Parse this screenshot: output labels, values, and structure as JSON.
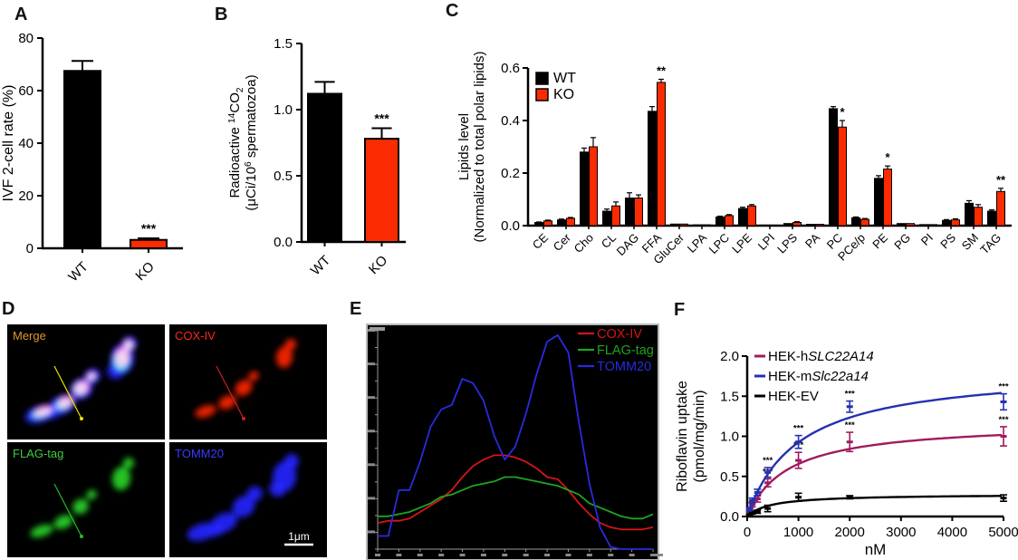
{
  "figure": {
    "panels": {
      "A": {
        "label": "A"
      },
      "B": {
        "label": "B"
      },
      "C": {
        "label": "C"
      },
      "D": {
        "label": "D"
      },
      "E": {
        "label": "E"
      },
      "F": {
        "label": "F"
      }
    }
  },
  "colors": {
    "wt": "#000000",
    "ko": "#fa2b00",
    "human": "#a01b5e",
    "mouse": "#2531b0",
    "ev": "#000000",
    "e_red": "#d51515",
    "e_green": "#1fa51f",
    "e_blue": "#2a2ae0"
  },
  "chart_data": [
    {
      "id": "A",
      "type": "bar",
      "ylabel": "IVF 2-cell rate (%)",
      "categories": [
        "WT",
        "KO"
      ],
      "values": [
        67.5,
        3.2
      ],
      "errors": [
        3.8,
        0.6
      ],
      "bar_colors": [
        "#000000",
        "#fa2b00"
      ],
      "ylim": [
        0,
        80
      ],
      "yticks": [
        0,
        20,
        40,
        60,
        80
      ],
      "ytick_labels": [
        "0",
        "20",
        "40",
        "60",
        "80"
      ],
      "significance": [
        {
          "category": "KO",
          "text": "***"
        }
      ]
    },
    {
      "id": "B",
      "type": "bar",
      "ylabel_rich": [
        [
          {
            "t": "Radioactive "
          },
          {
            "t": "14",
            "sup": true
          },
          {
            "t": "CO"
          },
          {
            "t": "2",
            "sub": true
          }
        ],
        [
          {
            "t": "(μCi/10"
          },
          {
            "t": "6",
            "sup": true
          },
          {
            "t": " spermatozoa)"
          }
        ]
      ],
      "categories": [
        "WT",
        "KO"
      ],
      "values": [
        1.12,
        0.78
      ],
      "errors": [
        0.09,
        0.08
      ],
      "bar_colors": [
        "#000000",
        "#fa2b00"
      ],
      "ylim": [
        0,
        1.5
      ],
      "yticks": [
        0,
        0.5,
        1.0,
        1.5
      ],
      "ytick_labels": [
        "0.0",
        "0.5",
        "1.0",
        "1.5"
      ],
      "significance": [
        {
          "category": "KO",
          "text": "***"
        }
      ]
    },
    {
      "id": "C",
      "type": "grouped_bar",
      "ylabel_lines": [
        "Lipids level",
        "(Normalized to total polar lipids)"
      ],
      "categories": [
        "CE",
        "Cer",
        "Cho",
        "CL",
        "DAG",
        "FFA",
        "GluCer",
        "LPA",
        "LPC",
        "LPE",
        "LPI",
        "LPS",
        "PA",
        "PC",
        "PCe/p",
        "PE",
        "PG",
        "PI",
        "PS",
        "SM",
        "TAG"
      ],
      "legend": [
        "WT",
        "KO"
      ],
      "series": [
        {
          "name": "WT",
          "color": "#000000",
          "values": [
            0.012,
            0.022,
            0.28,
            0.055,
            0.105,
            0.435,
            0.006,
            0.003,
            0.033,
            0.065,
            0.002,
            0.008,
            0.005,
            0.445,
            0.03,
            0.18,
            0.008,
            0.004,
            0.02,
            0.085,
            0.055
          ],
          "errors": [
            0.002,
            0.003,
            0.015,
            0.008,
            0.02,
            0.018,
            0.001,
            0.001,
            0.003,
            0.005,
            0.001,
            0.002,
            0.001,
            0.008,
            0.003,
            0.01,
            0.002,
            0.001,
            0.003,
            0.01,
            0.005
          ]
        },
        {
          "name": "KO",
          "color": "#fa2b00",
          "values": [
            0.018,
            0.028,
            0.3,
            0.075,
            0.105,
            0.545,
            0.006,
            0.003,
            0.038,
            0.075,
            0.002,
            0.012,
            0.005,
            0.375,
            0.024,
            0.215,
            0.008,
            0.004,
            0.022,
            0.07,
            0.13
          ],
          "errors": [
            0.003,
            0.003,
            0.035,
            0.015,
            0.012,
            0.012,
            0.001,
            0.001,
            0.004,
            0.005,
            0.001,
            0.003,
            0.001,
            0.025,
            0.003,
            0.012,
            0.002,
            0.001,
            0.004,
            0.01,
            0.012
          ]
        }
      ],
      "ylim": [
        0,
        0.6
      ],
      "yticks": [
        0,
        0.2,
        0.4,
        0.6
      ],
      "ytick_labels": [
        "0.0",
        "0.2",
        "0.4",
        "0.6"
      ],
      "significance": [
        {
          "category": "FFA",
          "text": "**"
        },
        {
          "category": "PC",
          "text": "*"
        },
        {
          "category": "PE",
          "text": "*"
        },
        {
          "category": "TAG",
          "text": "**"
        }
      ]
    },
    {
      "id": "E",
      "type": "line",
      "background": "#000000",
      "legend": [
        {
          "label": "COX-IV",
          "color": "#d51515"
        },
        {
          "label": "FLAG-tag",
          "color": "#1fa51f"
        },
        {
          "label": "TOMM20",
          "color": "#2a2ae0"
        }
      ],
      "x_range": [
        0,
        130
      ],
      "x": [
        0,
        5,
        10,
        15,
        20,
        25,
        30,
        35,
        40,
        45,
        50,
        55,
        60,
        65,
        70,
        75,
        80,
        85,
        90,
        95,
        100,
        105,
        110,
        115,
        120,
        125,
        130
      ],
      "series": [
        {
          "name": "COX-IV",
          "color": "#d51515",
          "y": [
            0.12,
            0.13,
            0.13,
            0.14,
            0.17,
            0.2,
            0.23,
            0.27,
            0.33,
            0.38,
            0.41,
            0.43,
            0.43,
            0.42,
            0.4,
            0.37,
            0.33,
            0.32,
            0.27,
            0.21,
            0.16,
            0.12,
            0.1,
            0.09,
            0.09,
            0.09,
            0.1
          ]
        },
        {
          "name": "FLAG-tag",
          "color": "#1fa51f",
          "y": [
            0.15,
            0.15,
            0.16,
            0.17,
            0.19,
            0.21,
            0.24,
            0.25,
            0.27,
            0.29,
            0.3,
            0.31,
            0.33,
            0.33,
            0.32,
            0.31,
            0.3,
            0.29,
            0.27,
            0.25,
            0.21,
            0.19,
            0.17,
            0.15,
            0.14,
            0.14,
            0.16
          ]
        },
        {
          "name": "TOMM20",
          "color": "#2a2ae0",
          "y": [
            0.06,
            0.06,
            0.27,
            0.27,
            0.4,
            0.56,
            0.64,
            0.66,
            0.78,
            0.76,
            0.68,
            0.52,
            0.41,
            0.47,
            0.62,
            0.8,
            0.95,
            0.98,
            0.9,
            0.58,
            0.3,
            0.1,
            0.01,
            0.0,
            0.0,
            0.0,
            0.0
          ]
        }
      ]
    },
    {
      "id": "F",
      "type": "scatter_fit",
      "ylabel_lines": [
        "Riboflavin uptake",
        "(pmol/mg/min)"
      ],
      "xlabel": "nM",
      "xlim": [
        0,
        5000
      ],
      "xticks": [
        0,
        1000,
        2000,
        3000,
        4000,
        5000
      ],
      "xtick_labels": [
        "0",
        "1000",
        "2000",
        "3000",
        "4000",
        "5000"
      ],
      "ylim": [
        0,
        2.0
      ],
      "yticks": [
        0,
        0.5,
        1.0,
        1.5,
        2.0
      ],
      "ytick_labels": [
        "0.0",
        "0.5",
        "1.0",
        "1.5",
        "2.0"
      ],
      "legend": [
        {
          "prefix": "HEK-h",
          "italic": "SLC22A14",
          "color": "#a01b5e"
        },
        {
          "prefix": "HEK-m",
          "italic": "Slc22a14",
          "color": "#2531b0"
        },
        {
          "prefix": "HEK-EV",
          "italic": "",
          "color": "#000000"
        }
      ],
      "series": [
        {
          "name": "HEK-hSLC22A14",
          "color": "#a01b5e",
          "fit": {
            "vmax": 1.18,
            "km": 800
          },
          "x": [
            50,
            100,
            200,
            400,
            1000,
            2000,
            5000
          ],
          "y": [
            0.07,
            0.15,
            0.22,
            0.42,
            0.7,
            0.93,
            1.0
          ],
          "err": [
            0.02,
            0.03,
            0.04,
            0.05,
            0.1,
            0.12,
            0.12
          ],
          "sig_x": [
            400,
            1000,
            2000,
            5000
          ],
          "sig_text": "***"
        },
        {
          "name": "HEK-mSlc22a14",
          "color": "#2531b0",
          "fit": {
            "vmax": 1.85,
            "km": 1000
          },
          "x": [
            50,
            100,
            200,
            400,
            1000,
            2000,
            5000
          ],
          "y": [
            0.09,
            0.2,
            0.3,
            0.55,
            0.93,
            1.37,
            1.43
          ],
          "err": [
            0.02,
            0.03,
            0.04,
            0.06,
            0.08,
            0.07,
            0.1
          ],
          "sig_x": [
            400,
            1000,
            2000,
            5000
          ],
          "sig_text": "***"
        },
        {
          "name": "HEK-EV",
          "color": "#000000",
          "fit": {
            "vmax": 0.28,
            "km": 450
          },
          "x": [
            50,
            100,
            200,
            400,
            1000,
            2000,
            5000
          ],
          "y": [
            0.02,
            0.04,
            0.06,
            0.1,
            0.24,
            0.24,
            0.23
          ],
          "err": [
            0.01,
            0.01,
            0.02,
            0.04,
            0.05,
            0.02,
            0.04
          ],
          "sig_x": [],
          "sig_text": ""
        }
      ]
    }
  ],
  "microscopy": {
    "channel_colors": {
      "red": "#ff2200",
      "green": "#27d427",
      "blue": "#2525ff"
    },
    "images": [
      {
        "name": "Merge",
        "label_color": "#dd9a28",
        "channels": [
          "blue",
          "red",
          "green"
        ],
        "line_color": "#e8e800"
      },
      {
        "name": "COX-IV",
        "label_color": "#ff2619",
        "channels": [
          "red"
        ],
        "line_color": "#cc2020"
      },
      {
        "name": "FLAG-tag",
        "label_color": "#3fcb3f",
        "channels": [
          "green"
        ],
        "line_color": "#28bb28"
      },
      {
        "name": "TOMM20",
        "label_color": "#3a3aff",
        "channels": [
          "blue"
        ],
        "scale_bar": {
          "label": "1μm"
        }
      }
    ]
  }
}
